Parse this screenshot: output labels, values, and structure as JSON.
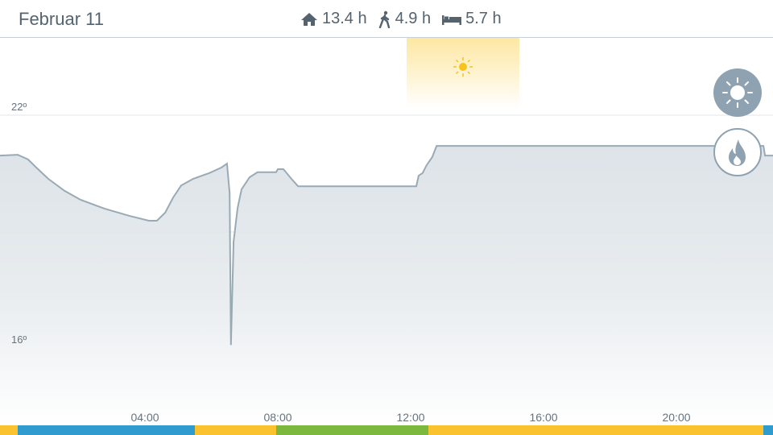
{
  "header": {
    "date": "Februar 11",
    "stats": [
      {
        "icon": "home-icon",
        "value": "13.4 h"
      },
      {
        "icon": "walking-icon",
        "value": "4.9 h"
      },
      {
        "icon": "bed-icon",
        "value": "5.7 h"
      }
    ]
  },
  "chart": {
    "y_labels": [
      "22º",
      "16º"
    ],
    "x_labels": [
      "04:00",
      "08:00",
      "12:00",
      "16:00",
      "20:00"
    ],
    "line_color": "#9aaab5",
    "temperature_series": [
      [
        0,
        20.96
      ],
      [
        0.17,
        20.98
      ],
      [
        0.48,
        20.86
      ],
      [
        0.73,
        20.65
      ],
      [
        1.09,
        20.36
      ],
      [
        1.58,
        20.05
      ],
      [
        2.06,
        19.82
      ],
      [
        2.79,
        19.59
      ],
      [
        3.52,
        19.41
      ],
      [
        4.12,
        19.28
      ],
      [
        4.36,
        19.28
      ],
      [
        4.61,
        19.49
      ],
      [
        4.85,
        19.88
      ],
      [
        5.09,
        20.19
      ],
      [
        5.45,
        20.36
      ],
      [
        5.94,
        20.51
      ],
      [
        6.3,
        20.65
      ],
      [
        6.47,
        20.75
      ],
      [
        6.55,
        19.99
      ],
      [
        6.59,
        16.08
      ],
      [
        6.67,
        18.74
      ],
      [
        6.79,
        19.61
      ],
      [
        6.91,
        20.09
      ],
      [
        7.15,
        20.4
      ],
      [
        7.39,
        20.53
      ],
      [
        7.95,
        20.53
      ],
      [
        8.0,
        20.61
      ],
      [
        8.17,
        20.61
      ],
      [
        8.41,
        20.36
      ],
      [
        8.61,
        20.17
      ],
      [
        12.17,
        20.17
      ],
      [
        12.24,
        20.44
      ],
      [
        12.36,
        20.51
      ],
      [
        12.48,
        20.71
      ],
      [
        12.65,
        20.92
      ],
      [
        12.78,
        21.21
      ],
      [
        22.62,
        21.21
      ],
      [
        22.67,
        20.96
      ],
      [
        22.91,
        20.96
      ]
    ],
    "sun_period": {
      "icon": "sun-icon",
      "color": "#fde7a2"
    }
  },
  "mode_bar": [
    {
      "mode": "home",
      "color": "#fbc22f"
    },
    {
      "mode": "sleep",
      "color": "#2f9bcf"
    },
    {
      "mode": "home",
      "color": "#fbc22f"
    },
    {
      "mode": "away",
      "color": "#7cb83e"
    },
    {
      "mode": "home",
      "color": "#fbc22f"
    },
    {
      "mode": "sleep",
      "color": "#2f9bcf"
    }
  ],
  "buttons": {
    "sun": "sun-icon",
    "heating": "flame-icon"
  }
}
